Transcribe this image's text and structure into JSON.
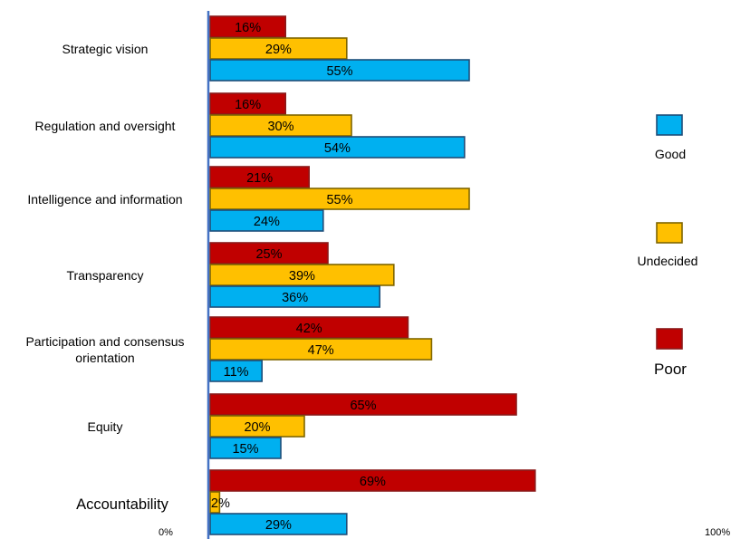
{
  "chart_data": {
    "type": "bar",
    "orientation": "horizontal",
    "categories": [
      "Strategic vision",
      "Regulation and oversight",
      "Intelligence and information",
      "Transparency",
      "Participation and consensus orientation",
      "Equity",
      "Accountability"
    ],
    "category_lines": [
      [
        "Strategic vision"
      ],
      [
        "Regulation and oversight"
      ],
      [
        "Intelligence and information"
      ],
      [
        "Transparency"
      ],
      [
        "Participation and consensus",
        "orientation"
      ],
      [
        "Equity"
      ],
      [
        "Accountability"
      ]
    ],
    "series": [
      {
        "name": "Poor",
        "color": "#c00000",
        "values": [
          16,
          16,
          21,
          25,
          42,
          65,
          69
        ]
      },
      {
        "name": "Undecided",
        "color": "#ffc000",
        "values": [
          29,
          30,
          55,
          39,
          47,
          20,
          2
        ]
      },
      {
        "name": "Good",
        "color": "#00b0f0",
        "values": [
          55,
          54,
          24,
          36,
          11,
          15,
          29
        ]
      }
    ],
    "value_labels": [
      [
        "16%",
        "29%",
        "55%"
      ],
      [
        "16%",
        "30%",
        "54%"
      ],
      [
        "21%",
        "55%",
        "24%"
      ],
      [
        "25%",
        "39%",
        "36%"
      ],
      [
        "42%",
        "47%",
        "11%"
      ],
      [
        "65%",
        "20%",
        "15%"
      ],
      [
        "69%",
        "2%",
        "29%"
      ]
    ],
    "legend": [
      "Good",
      "Undecided",
      "Poor"
    ],
    "legend_position": "right",
    "xlim": [
      0,
      100
    ],
    "x_tick_labels": [
      "0%",
      "100%"
    ],
    "grid": false,
    "title": "",
    "xlabel": "",
    "ylabel": ""
  }
}
